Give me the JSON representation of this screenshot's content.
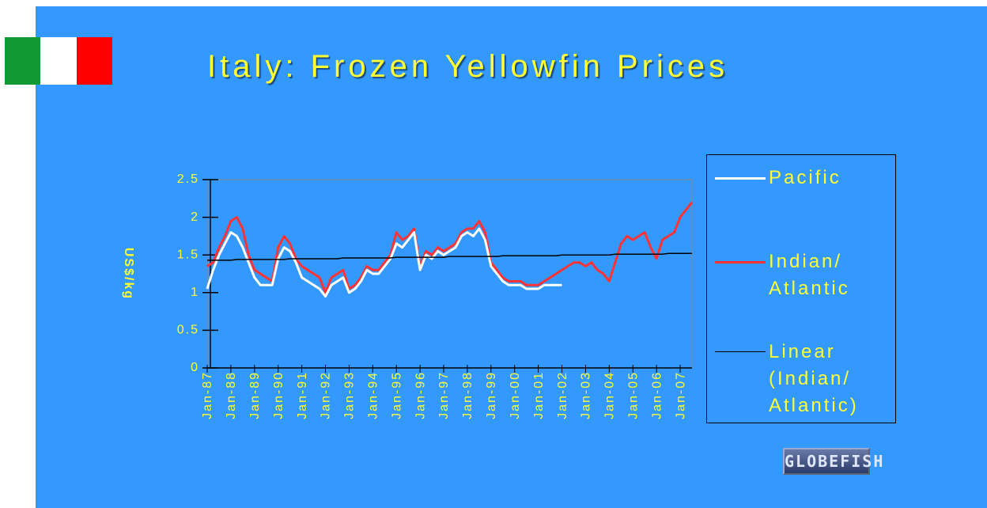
{
  "chart_data": {
    "type": "line",
    "title": "Italy: Frozen Yellowfin Prices",
    "ylabel": "US$/kg",
    "logo": "GLOBEFISH",
    "x": [
      1987,
      1987.25,
      1987.5,
      1987.75,
      1988,
      1988.25,
      1988.5,
      1988.75,
      1989,
      1989.25,
      1989.5,
      1989.75,
      1990,
      1990.25,
      1990.5,
      1990.75,
      1991,
      1991.25,
      1991.5,
      1991.75,
      1992,
      1992.25,
      1992.5,
      1992.75,
      1993,
      1993.25,
      1993.5,
      1993.75,
      1994,
      1994.25,
      1994.5,
      1994.75,
      1995,
      1995.25,
      1995.5,
      1995.75,
      1996,
      1996.25,
      1996.5,
      1996.75,
      1997,
      1997.25,
      1997.5,
      1997.75,
      1998,
      1998.25,
      1998.5,
      1998.75,
      1999,
      1999.25,
      1999.5,
      1999.75,
      2000,
      2000.25,
      2000.5,
      2000.75,
      2001,
      2001.25,
      2001.5,
      2001.75,
      2002,
      2002.25,
      2002.5,
      2002.75,
      2003,
      2003.25,
      2003.5,
      2003.75,
      2004,
      2004.25,
      2004.5,
      2004.75,
      2005,
      2005.25,
      2005.5,
      2005.75,
      2006,
      2006.25,
      2006.5,
      2006.75,
      2007,
      2007.25,
      2007.5
    ],
    "xlim": [
      1987,
      2007.5
    ],
    "xticks": [
      {
        "value": 1987,
        "label": "Jan-87"
      },
      {
        "value": 1988,
        "label": "Jan-88"
      },
      {
        "value": 1989,
        "label": "Jan-89"
      },
      {
        "value": 1990,
        "label": "Jan-90"
      },
      {
        "value": 1991,
        "label": "Jan-91"
      },
      {
        "value": 1992,
        "label": "Jan-92"
      },
      {
        "value": 1993,
        "label": "Jan-93"
      },
      {
        "value": 1994,
        "label": "Jan-94"
      },
      {
        "value": 1995,
        "label": "Jan-95"
      },
      {
        "value": 1996,
        "label": "Jan-96"
      },
      {
        "value": 1997,
        "label": "Jan-97"
      },
      {
        "value": 1998,
        "label": "Jan-98"
      },
      {
        "value": 1999,
        "label": "Jan-99"
      },
      {
        "value": 2000,
        "label": "Jan-00"
      },
      {
        "value": 2001,
        "label": "Jan-01"
      },
      {
        "value": 2002,
        "label": "Jan-02"
      },
      {
        "value": 2003,
        "label": "Jan-03"
      },
      {
        "value": 2004,
        "label": "Jan-04"
      },
      {
        "value": 2005,
        "label": "Jan-05"
      },
      {
        "value": 2006,
        "label": "Jan-06"
      },
      {
        "value": 2007,
        "label": "Jan-07"
      }
    ],
    "ylim": [
      0,
      2.5
    ],
    "yticks": [
      0,
      0.5,
      1,
      1.5,
      2,
      2.5
    ],
    "series": [
      {
        "name": "Pacific",
        "color": "#ffffff",
        "values": [
          1.05,
          1.3,
          1.5,
          1.65,
          1.8,
          1.75,
          1.6,
          1.4,
          1.2,
          1.1,
          1.1,
          1.1,
          1.45,
          1.6,
          1.55,
          1.4,
          1.2,
          1.15,
          1.1,
          1.05,
          0.95,
          1.1,
          1.15,
          1.2,
          1.0,
          1.05,
          1.15,
          1.3,
          1.25,
          1.25,
          1.35,
          1.45,
          1.65,
          1.6,
          1.7,
          1.8,
          1.3,
          1.5,
          1.45,
          1.55,
          1.5,
          1.55,
          1.6,
          1.75,
          1.8,
          1.75,
          1.85,
          1.7,
          1.35,
          1.25,
          1.15,
          1.1,
          1.1,
          1.1,
          1.05,
          1.05,
          1.05,
          1.1,
          1.1,
          1.1,
          1.1,
          null,
          null,
          null,
          null,
          null,
          null,
          null,
          null,
          null,
          null,
          null,
          null,
          null,
          null,
          null,
          null,
          null,
          null,
          null,
          null,
          null,
          null
        ]
      },
      {
        "name": "Indian/ Atlantic",
        "color": "#ff3333",
        "values": [
          1.35,
          1.4,
          1.6,
          1.75,
          1.95,
          2.0,
          1.85,
          1.5,
          1.3,
          1.25,
          1.2,
          1.15,
          1.6,
          1.75,
          1.65,
          1.45,
          1.35,
          1.3,
          1.25,
          1.2,
          1.0,
          1.2,
          1.25,
          1.3,
          1.05,
          1.1,
          1.2,
          1.35,
          1.3,
          1.3,
          1.4,
          1.5,
          1.8,
          1.7,
          1.75,
          1.85,
          1.35,
          1.55,
          1.5,
          1.6,
          1.55,
          1.6,
          1.65,
          1.8,
          1.85,
          1.85,
          1.95,
          1.8,
          1.4,
          1.3,
          1.2,
          1.15,
          1.15,
          1.15,
          1.1,
          1.1,
          1.1,
          1.15,
          1.2,
          1.25,
          1.3,
          1.35,
          1.4,
          1.4,
          1.35,
          1.4,
          1.3,
          1.25,
          1.15,
          1.4,
          1.65,
          1.75,
          1.7,
          1.75,
          1.8,
          1.6,
          1.45,
          1.7,
          1.75,
          1.8,
          2.0,
          2.1,
          2.2
        ]
      },
      {
        "name": "Linear (Indian/ Atlantic)",
        "color": "#000000",
        "values": [
          1.43,
          1.43,
          1.43,
          1.43,
          1.43,
          1.44,
          1.44,
          1.44,
          1.44,
          1.44,
          1.44,
          1.44,
          1.44,
          1.44,
          1.45,
          1.45,
          1.45,
          1.45,
          1.45,
          1.45,
          1.45,
          1.45,
          1.45,
          1.46,
          1.46,
          1.46,
          1.46,
          1.46,
          1.46,
          1.46,
          1.46,
          1.46,
          1.47,
          1.47,
          1.47,
          1.47,
          1.47,
          1.47,
          1.47,
          1.47,
          1.47,
          1.48,
          1.48,
          1.48,
          1.48,
          1.48,
          1.48,
          1.48,
          1.48,
          1.48,
          1.49,
          1.49,
          1.49,
          1.49,
          1.49,
          1.49,
          1.49,
          1.49,
          1.49,
          1.49,
          1.5,
          1.5,
          1.5,
          1.5,
          1.5,
          1.5,
          1.5,
          1.5,
          1.5,
          1.51,
          1.51,
          1.51,
          1.51,
          1.51,
          1.51,
          1.51,
          1.51,
          1.51,
          1.52,
          1.52,
          1.52,
          1.52,
          1.52
        ]
      }
    ]
  }
}
